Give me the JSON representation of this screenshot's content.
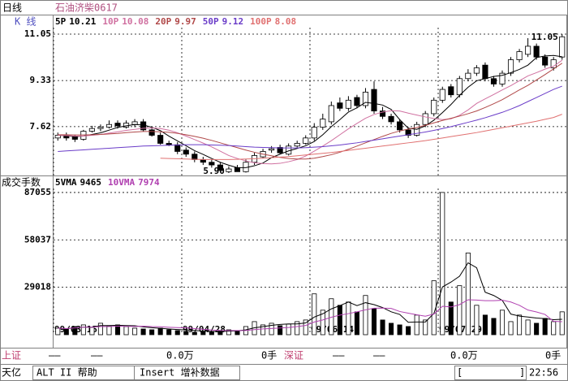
{
  "header": {
    "period": "日线",
    "stock": "石油济柴0617"
  },
  "chart_data": [
    {
      "type": "candlestick",
      "label": "K    线",
      "open": [
        7.2,
        7.3,
        7.25,
        7.15,
        7.45,
        7.55,
        7.6,
        7.75,
        7.6,
        7.7,
        7.8,
        7.5,
        7.3,
        7.0,
        6.95,
        6.75,
        6.6,
        6.4,
        6.3,
        6.2,
        5.95,
        6.1,
        5.95,
        6.3,
        6.5,
        6.75,
        6.85,
        6.6,
        6.9,
        7.0,
        7.2,
        7.6,
        7.8,
        8.5,
        8.3,
        8.7,
        8.4,
        9.0,
        8.2,
        8.0,
        7.8,
        7.5,
        7.3,
        7.7,
        8.1,
        8.6,
        9.1,
        8.8,
        9.4,
        9.6,
        9.9,
        9.4,
        9.2,
        9.6,
        10.1,
        10.3,
        10.6,
        10.2,
        9.8,
        10.2
      ],
      "high": [
        7.4,
        7.4,
        7.3,
        7.5,
        7.65,
        7.7,
        7.85,
        7.85,
        7.85,
        7.9,
        7.9,
        7.6,
        7.4,
        7.1,
        7.05,
        6.85,
        6.7,
        6.5,
        6.4,
        6.3,
        6.15,
        6.2,
        6.4,
        6.65,
        6.8,
        6.9,
        6.95,
        7.0,
        7.1,
        7.3,
        7.75,
        8.1,
        8.55,
        8.7,
        8.75,
        8.8,
        9.05,
        9.3,
        8.35,
        8.1,
        7.9,
        7.6,
        7.8,
        8.2,
        8.7,
        9.1,
        9.2,
        9.5,
        9.75,
        9.9,
        10.0,
        9.5,
        9.7,
        10.2,
        10.5,
        10.9,
        10.7,
        10.3,
        10.2,
        11.05
      ],
      "low": [
        7.1,
        7.1,
        7.05,
        7.1,
        7.4,
        7.45,
        7.55,
        7.55,
        7.55,
        7.6,
        7.45,
        7.25,
        6.95,
        6.9,
        6.6,
        6.5,
        6.3,
        6.2,
        6.1,
        5.95,
        5.9,
        5.95,
        5.92,
        6.2,
        6.45,
        6.65,
        6.6,
        6.55,
        6.85,
        6.95,
        7.1,
        7.5,
        7.7,
        8.2,
        8.2,
        8.3,
        8.3,
        8.1,
        7.9,
        7.7,
        7.4,
        7.2,
        7.25,
        7.6,
        8.0,
        8.5,
        8.7,
        8.7,
        9.3,
        9.5,
        9.3,
        9.1,
        9.1,
        9.5,
        10.0,
        10.2,
        10.1,
        9.8,
        9.7,
        10.1
      ],
      "close": [
        7.3,
        7.2,
        7.15,
        7.45,
        7.55,
        7.6,
        7.7,
        7.65,
        7.75,
        7.8,
        7.5,
        7.3,
        7.0,
        6.95,
        6.7,
        6.6,
        6.4,
        6.3,
        6.2,
        6.0,
        6.05,
        5.95,
        6.3,
        6.55,
        6.7,
        6.8,
        6.65,
        6.9,
        7.0,
        7.2,
        7.6,
        7.9,
        8.4,
        8.3,
        8.6,
        8.4,
        8.9,
        8.2,
        8.0,
        7.8,
        7.5,
        7.3,
        7.7,
        8.1,
        8.6,
        9.0,
        8.8,
        9.4,
        9.6,
        9.8,
        9.4,
        9.2,
        9.6,
        10.1,
        10.4,
        10.6,
        10.2,
        9.9,
        10.1,
        10.95
      ],
      "up_color": "#000000",
      "down_color": "#000000",
      "high_label": "11.05",
      "low_label": "5.90",
      "ylim": [
        5.81,
        11.29
      ],
      "yticks": [
        7.62,
        9.33,
        11.05
      ],
      "grid": true,
      "series": [
        {
          "name": "5P",
          "color": "#000000",
          "values": [
            7.3,
            7.28,
            7.25,
            7.27,
            7.33,
            7.39,
            7.49,
            7.59,
            7.65,
            7.7,
            7.68,
            7.6,
            7.47,
            7.27,
            7.09,
            6.91,
            6.73,
            6.59,
            6.44,
            6.3,
            6.19,
            6.1,
            6.1,
            6.17,
            6.27,
            6.47,
            6.6,
            6.72,
            6.81,
            6.91,
            7.07,
            7.32,
            7.62,
            7.88,
            8.16,
            8.32,
            8.52,
            8.48,
            8.42,
            8.26,
            7.88,
            7.56,
            7.52,
            7.65,
            7.86,
            8.14,
            8.44,
            8.78,
            9.08,
            9.32,
            9.4,
            9.48,
            9.52,
            9.62,
            9.74,
            9.9,
            10.18,
            10.24,
            10.26,
            10.21
          ]
        },
        {
          "name": "10P",
          "color": "#d070a0",
          "values": [
            7.3,
            7.29,
            7.27,
            7.27,
            7.3,
            7.33,
            7.38,
            7.43,
            7.48,
            7.52,
            7.56,
            7.57,
            7.55,
            7.49,
            7.39,
            7.27,
            7.14,
            7.01,
            6.87,
            6.71,
            6.55,
            6.44,
            6.35,
            6.28,
            6.25,
            6.24,
            6.26,
            6.32,
            6.4,
            6.53,
            6.71,
            6.9,
            7.1,
            7.32,
            7.54,
            7.74,
            7.93,
            8.07,
            8.16,
            8.21,
            8.2,
            8.12,
            8.05,
            7.98,
            7.92,
            7.88,
            7.91,
            8.04,
            8.24,
            8.48,
            8.65,
            8.81,
            8.98,
            9.14,
            9.32,
            9.5,
            9.62,
            9.75,
            9.86,
            10.08
          ]
        },
        {
          "name": "20P",
          "color": "#b04848",
          "values": [
            7.32,
            7.32,
            7.31,
            7.31,
            7.32,
            7.33,
            7.35,
            7.37,
            7.4,
            7.42,
            7.44,
            7.44,
            7.43,
            7.41,
            7.37,
            7.32,
            7.26,
            7.19,
            7.11,
            7.02,
            6.93,
            6.84,
            6.75,
            6.67,
            6.6,
            6.54,
            6.48,
            6.44,
            6.42,
            6.42,
            6.45,
            6.51,
            6.58,
            6.67,
            6.78,
            6.9,
            7.02,
            7.14,
            7.26,
            7.37,
            7.46,
            7.53,
            7.59,
            7.67,
            7.76,
            7.85,
            7.93,
            8.01,
            8.1,
            8.2,
            8.33,
            8.47,
            8.62,
            8.8,
            8.98,
            9.15,
            9.35,
            9.55,
            9.76,
            9.97
          ]
        },
        {
          "name": "50P",
          "color": "#6a3cc8",
          "values": [
            6.7,
            6.72,
            6.74,
            6.76,
            6.78,
            6.8,
            6.82,
            6.84,
            6.86,
            6.88,
            6.9,
            6.91,
            6.92,
            6.93,
            6.94,
            6.95,
            6.95,
            6.95,
            6.94,
            6.93,
            6.92,
            6.9,
            6.88,
            6.86,
            6.85,
            6.84,
            6.83,
            6.83,
            6.83,
            6.84,
            6.86,
            6.88,
            6.91,
            6.94,
            6.98,
            7.02,
            7.07,
            7.12,
            7.17,
            7.22,
            7.27,
            7.32,
            7.37,
            7.42,
            7.48,
            7.55,
            7.62,
            7.7,
            7.78,
            7.86,
            7.95,
            8.05,
            8.15,
            8.27,
            8.4,
            8.55,
            8.7,
            8.85,
            9.0,
            9.12
          ]
        },
        {
          "name": "100P",
          "color": "#e07070",
          "values": [
            null,
            null,
            null,
            null,
            null,
            null,
            null,
            null,
            null,
            null,
            null,
            null,
            6.45,
            6.44,
            6.43,
            6.42,
            6.41,
            6.4,
            6.4,
            6.4,
            6.4,
            6.41,
            6.42,
            6.43,
            6.45,
            6.47,
            6.49,
            6.51,
            6.54,
            6.57,
            6.6,
            6.63,
            6.66,
            6.7,
            6.74,
            6.78,
            6.82,
            6.86,
            6.9,
            6.94,
            6.98,
            7.02,
            7.06,
            7.1,
            7.15,
            7.2,
            7.25,
            7.3,
            7.35,
            7.4,
            7.46,
            7.52,
            7.58,
            7.64,
            7.7,
            7.76,
            7.82,
            7.89,
            7.96,
            8.08
          ]
        }
      ]
    },
    {
      "type": "bar",
      "title": "成交手数",
      "categories": [
        "99/03/15",
        null,
        null,
        null,
        null,
        null,
        null,
        null,
        null,
        null,
        null,
        null,
        null,
        null,
        null,
        "99/04/28",
        null,
        null,
        null,
        null,
        null,
        null,
        null,
        null,
        null,
        null,
        null,
        null,
        null,
        null,
        "99/06/14",
        null,
        null,
        null,
        null,
        null,
        null,
        null,
        null,
        null,
        null,
        null,
        null,
        null,
        null,
        "99/07/29",
        null,
        null,
        null,
        null,
        null,
        null,
        null,
        null,
        null,
        null,
        null,
        null,
        null,
        null
      ],
      "values": [
        4000,
        3500,
        5000,
        6000,
        4500,
        7000,
        5500,
        6000,
        5000,
        4000,
        3500,
        3000,
        4000,
        3000,
        2500,
        2000,
        1500,
        1800,
        2000,
        2500,
        3000,
        2500,
        5000,
        8000,
        6000,
        7000,
        5500,
        6500,
        8000,
        9000,
        25000,
        15000,
        22000,
        18000,
        20000,
        14000,
        24000,
        16000,
        9000,
        7000,
        6000,
        5000,
        12000,
        9000,
        33000,
        87055,
        20000,
        30000,
        50000,
        18000,
        12000,
        10000,
        15000,
        8000,
        12000,
        9000,
        7000,
        10000,
        8000,
        14000
      ],
      "color": "#000000",
      "ylim": [
        0,
        89500
      ],
      "yticks": [
        29018,
        58037,
        87055
      ],
      "grid": true,
      "series": [
        {
          "name": "5VMA",
          "color": "#000000",
          "values": [
            4000,
            3750,
            4170,
            4630,
            4600,
            5600,
            5600,
            5800,
            5600,
            5500,
            4800,
            4300,
            3900,
            3500,
            3200,
            2900,
            2600,
            2200,
            2000,
            1960,
            2160,
            2360,
            2960,
            4200,
            4900,
            5700,
            6300,
            6600,
            6600,
            7200,
            10800,
            12800,
            15800,
            17800,
            20000,
            17800,
            19600,
            18400,
            16600,
            14000,
            12400,
            7600,
            7800,
            7800,
            13000,
            29200,
            32200,
            35800,
            44000,
            41000,
            26000,
            24000,
            21000,
            12600,
            11400,
            10800,
            10200,
            9800,
            9200,
            9465
          ]
        },
        {
          "name": "10VMA",
          "color": "#b040b0",
          "values": [
            4000,
            3750,
            4170,
            4630,
            4600,
            5000,
            5000,
            5200,
            5100,
            5050,
            5200,
            4950,
            4850,
            4550,
            4350,
            4250,
            3700,
            3300,
            2850,
            2600,
            2550,
            2530,
            2560,
            3080,
            3530,
            3820,
            4130,
            4440,
            5000,
            5650,
            7750,
            9000,
            10700,
            12000,
            12900,
            14000,
            15200,
            16200,
            16300,
            16100,
            14200,
            13200,
            12200,
            11300,
            12600,
            17400,
            17000,
            18400,
            21400,
            21200,
            20800,
            20800,
            21100,
            20000,
            18000,
            15100,
            13900,
            12400,
            8200,
            7974
          ]
        }
      ]
    }
  ],
  "footer": {
    "sh": {
      "name": "上证",
      "fields": [
        "——",
        "——",
        "0.0万",
        "0手"
      ]
    },
    "sz": {
      "name": "深证",
      "fields": [
        "——",
        "——",
        "0.0万",
        "0手"
      ]
    },
    "status": [
      "天亿",
      "ALT II 帮助",
      "Insert 增补数据",
      "[",
      "]",
      "22:56"
    ]
  }
}
